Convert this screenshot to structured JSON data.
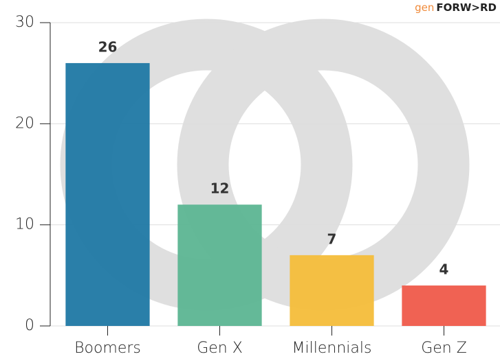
{
  "chart_data": {
    "type": "bar",
    "logo": {
      "prefix": "gen",
      "name": "FORW>RD"
    },
    "categories": [
      "Boomers",
      "Gen X",
      "Millennials",
      "Gen Z"
    ],
    "values": [
      26,
      12,
      7,
      4
    ],
    "colors": [
      "#1f78a4",
      "#5cb592",
      "#f4bd3a",
      "#ef5a4a"
    ],
    "ylim": [
      0,
      30
    ],
    "yticks": [
      0,
      10,
      20,
      30
    ],
    "grid": true
  }
}
